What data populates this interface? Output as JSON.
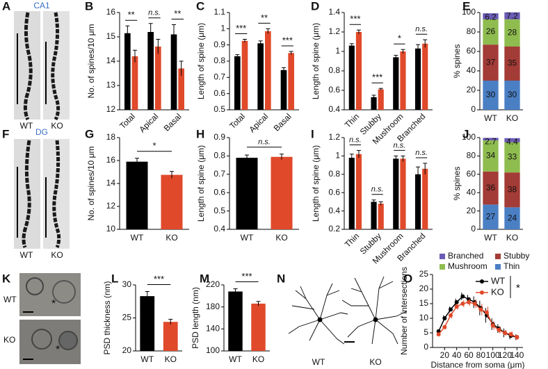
{
  "image_panels": [
    {
      "panel": "A",
      "title": "CA1",
      "captions": [
        "WT",
        "KO"
      ]
    },
    {
      "panel": "F",
      "title": "DG",
      "captions": [
        "WT",
        "KO"
      ]
    },
    {
      "panel": "K",
      "captions": [
        "WT",
        "KO"
      ],
      "markers": [
        "*",
        "*"
      ]
    },
    {
      "panel": "N",
      "captions": [
        "WT",
        "KO"
      ]
    }
  ],
  "chart_data": [
    {
      "panel": "B",
      "type": "bar",
      "ylabel": "No. of spines/10 μm",
      "categories": [
        "Total",
        "Apical",
        "Basal"
      ],
      "series": [
        {
          "color": "#000000",
          "values": [
            15.15,
            15.2,
            15.1
          ],
          "errors": [
            0.3,
            0.35,
            0.4
          ]
        },
        {
          "color": "#e0492a",
          "values": [
            14.2,
            14.6,
            13.7
          ],
          "errors": [
            0.25,
            0.3,
            0.3
          ]
        }
      ],
      "annotations": [
        "**",
        "n.s.",
        "**"
      ],
      "ylim": [
        12,
        16
      ],
      "yticks": [
        12,
        13,
        14,
        15,
        16
      ]
    },
    {
      "panel": "C",
      "type": "bar",
      "ylabel": "Length of spine (μm)",
      "categories": [
        "Total",
        "Apical",
        "Basal"
      ],
      "series": [
        {
          "color": "#000000",
          "values": [
            0.83,
            0.91,
            0.745
          ],
          "errors": [
            0.01,
            0.015,
            0.015
          ]
        },
        {
          "color": "#e0492a",
          "values": [
            0.925,
            0.985,
            0.85
          ],
          "errors": [
            0.01,
            0.015,
            0.01
          ]
        }
      ],
      "annotations": [
        "***",
        "**",
        "***"
      ],
      "ylim": [
        0.5,
        1.1
      ],
      "yticks": [
        0.5,
        0.6,
        0.7,
        0.8,
        0.9,
        1,
        1.1
      ]
    },
    {
      "panel": "D",
      "type": "bar",
      "ylabel": "Length of spine (μm)",
      "categories": [
        "Thin",
        "Stubby",
        "Mushroom",
        "Branched"
      ],
      "series": [
        {
          "color": "#000000",
          "values": [
            1.06,
            0.53,
            0.94,
            1.03
          ],
          "errors": [
            0.02,
            0.02,
            0.02,
            0.04
          ]
        },
        {
          "color": "#e0492a",
          "values": [
            1.2,
            0.61,
            1.0,
            1.08
          ],
          "errors": [
            0.02,
            0.01,
            0.02,
            0.04
          ]
        }
      ],
      "annotations": [
        "***",
        "***",
        "*",
        "n.s."
      ],
      "ylim": [
        0.4,
        1.4
      ],
      "yticks": [
        0.4,
        0.6,
        0.8,
        1,
        1.2,
        1.4
      ]
    },
    {
      "panel": "E",
      "type": "stacked_bar",
      "ylabel": "% spines",
      "categories": [
        "WT",
        "KO"
      ],
      "series": [
        {
          "color": "#4a7fc4",
          "values": [
            30,
            30
          ]
        },
        {
          "color": "#a33b36",
          "values": [
            37,
            35
          ]
        },
        {
          "color": "#8fbc4f",
          "values": [
            26,
            28
          ]
        },
        {
          "color": "#6b5bb5",
          "values": [
            6.2,
            7.2
          ]
        }
      ],
      "ylim": [
        0,
        100
      ],
      "yticks": [
        0,
        20,
        40,
        60,
        80,
        100
      ]
    },
    {
      "panel": "G",
      "type": "bar",
      "ylabel": "No. of spines/10 μm",
      "categories": [
        "WT",
        "KO"
      ],
      "values": [
        15.9,
        14.75
      ],
      "errors": [
        0.3,
        0.3
      ],
      "colors": [
        "#000000",
        "#e0492a"
      ],
      "annotations": [
        "*"
      ],
      "ylim": [
        10,
        18
      ],
      "yticks": [
        10,
        12,
        14,
        16,
        18
      ]
    },
    {
      "panel": "H",
      "type": "bar",
      "ylabel": "Length of spine (μm)",
      "categories": [
        "WT",
        "KO"
      ],
      "values": [
        0.79,
        0.795
      ],
      "errors": [
        0.015,
        0.015
      ],
      "colors": [
        "#000000",
        "#e0492a"
      ],
      "annotations": [
        "n.s."
      ],
      "ylim": [
        0.4,
        0.9
      ],
      "yticks": [
        0.4,
        0.5,
        0.6,
        0.7,
        0.8,
        0.9
      ]
    },
    {
      "panel": "I",
      "type": "bar",
      "ylabel": "Length of spine (μm)",
      "categories": [
        "Thin",
        "Stubby",
        "Mushroom",
        "Branched"
      ],
      "series": [
        {
          "color": "#000000",
          "values": [
            0.98,
            0.5,
            0.97,
            0.8
          ],
          "errors": [
            0.04,
            0.02,
            0.03,
            0.08
          ]
        },
        {
          "color": "#e0492a",
          "values": [
            1.02,
            0.48,
            0.97,
            0.86
          ],
          "errors": [
            0.04,
            0.02,
            0.03,
            0.06
          ]
        }
      ],
      "annotations": [
        "n.s.",
        "n.s.",
        "n.s.",
        "n.s."
      ],
      "ylim": [
        0.2,
        1.2
      ],
      "yticks": [
        0.2,
        0.4,
        0.6,
        0.8,
        1,
        1.2
      ]
    },
    {
      "panel": "J",
      "type": "stacked_bar",
      "ylabel": "% spines",
      "categories": [
        "WT",
        "KO"
      ],
      "series": [
        {
          "name": "Thin",
          "color": "#4a7fc4",
          "values": [
            27,
            24
          ]
        },
        {
          "name": "Stubby",
          "color": "#a33b36",
          "values": [
            36,
            38
          ]
        },
        {
          "name": "Mushroom",
          "color": "#8fbc4f",
          "values": [
            34,
            33
          ]
        },
        {
          "name": "Branched",
          "color": "#6b5bb5",
          "values": [
            2.7,
            4.4
          ]
        }
      ],
      "legend": "below",
      "ylim": [
        0,
        100
      ],
      "yticks": [
        0,
        20,
        40,
        60,
        80,
        100
      ]
    },
    {
      "panel": "L",
      "type": "bar",
      "ylabel": "PSD thickness (nm)",
      "categories": [
        "WT",
        "KO"
      ],
      "values": [
        28.3,
        24.4
      ],
      "errors": [
        0.7,
        0.4
      ],
      "colors": [
        "#000000",
        "#e0492a"
      ],
      "annotations": [
        "***"
      ],
      "ylim": [
        20,
        30
      ],
      "yticks": [
        20,
        25,
        30
      ]
    },
    {
      "panel": "M",
      "type": "bar",
      "ylabel": "PSD length (nm)",
      "categories": [
        "WT",
        "KO"
      ],
      "values": [
        208,
        186
      ],
      "errors": [
        5,
        4
      ],
      "colors": [
        "#000000",
        "#e0492a"
      ],
      "annotations": [
        "***"
      ],
      "ylim": [
        100,
        220
      ],
      "yticks": [
        100,
        140,
        180,
        220
      ]
    },
    {
      "panel": "O",
      "type": "line",
      "xlabel": "Distance from soma (μm)",
      "ylabel": "Number of intersections",
      "x": [
        10,
        20,
        30,
        40,
        50,
        60,
        70,
        80,
        90,
        100,
        110,
        120,
        130,
        140
      ],
      "series": [
        {
          "name": "WT",
          "color": "#000000",
          "values": [
            5.5,
            10,
            13,
            15.5,
            17.5,
            16.5,
            15.5,
            13.5,
            11,
            8,
            6.5,
            5,
            4,
            3.5
          ],
          "errors": [
            0.6,
            1,
            1,
            1.2,
            1.3,
            1.5,
            2,
            2.5,
            2.5,
            2,
            1.5,
            1.5,
            1.2,
            1
          ]
        },
        {
          "name": "KO",
          "color": "#e0492a",
          "values": [
            4.5,
            7,
            11,
            14,
            15,
            15.5,
            15,
            13,
            12,
            7.5,
            6,
            5,
            4.5,
            3.5
          ],
          "errors": [
            0.5,
            0.8,
            1,
            1,
            1.2,
            1.2,
            1.5,
            2,
            2,
            1.5,
            1.2,
            1,
            1,
            0.8
          ]
        }
      ],
      "significance": "*",
      "legend": "upper right",
      "xlim": [
        0,
        150
      ],
      "xticks": [
        20,
        40,
        60,
        80,
        100,
        120,
        140
      ],
      "ylim": [
        0,
        25
      ],
      "yticks": [
        0,
        5,
        10,
        15,
        20,
        25
      ]
    }
  ]
}
